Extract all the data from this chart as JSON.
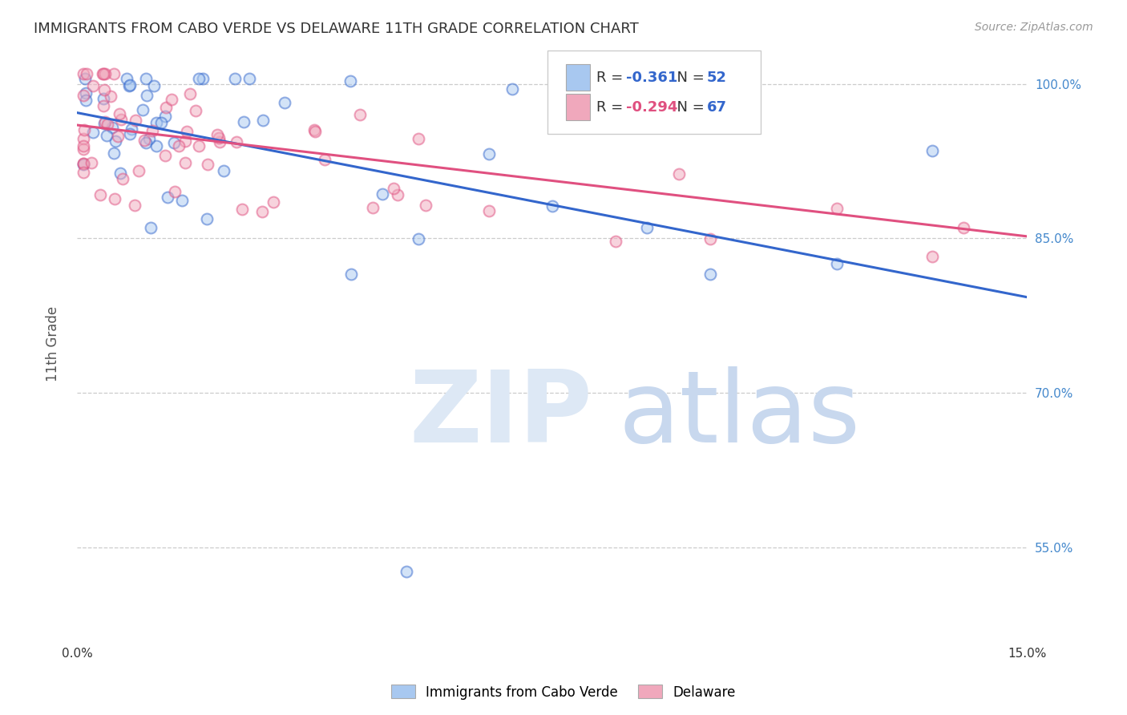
{
  "title": "IMMIGRANTS FROM CABO VERDE VS DELAWARE 11TH GRADE CORRELATION CHART",
  "source": "Source: ZipAtlas.com",
  "ylabel": "11th Grade",
  "ylabel_right_ticks": [
    "100.0%",
    "85.0%",
    "70.0%",
    "55.0%"
  ],
  "ytick_positions": [
    1.0,
    0.85,
    0.7,
    0.55
  ],
  "xmin": 0.0,
  "xmax": 0.15,
  "ymin": 0.46,
  "ymax": 1.035,
  "legend_blue_r": "-0.361",
  "legend_blue_n": "52",
  "legend_pink_r": "-0.294",
  "legend_pink_n": "67",
  "blue_color": "#a8c8f0",
  "pink_color": "#f0a8bc",
  "blue_line_color": "#3366cc",
  "pink_line_color": "#e05080",
  "blue_line_y0": 0.972,
  "blue_line_y1": 0.793,
  "pink_line_y0": 0.96,
  "pink_line_y1": 0.852,
  "watermark_zip": "ZIP",
  "watermark_atlas": "atlas",
  "watermark_color": "#dde8f5",
  "background_color": "#ffffff",
  "grid_color": "#cccccc",
  "right_tick_color": "#4488cc",
  "title_color": "#333333",
  "source_color": "#999999"
}
